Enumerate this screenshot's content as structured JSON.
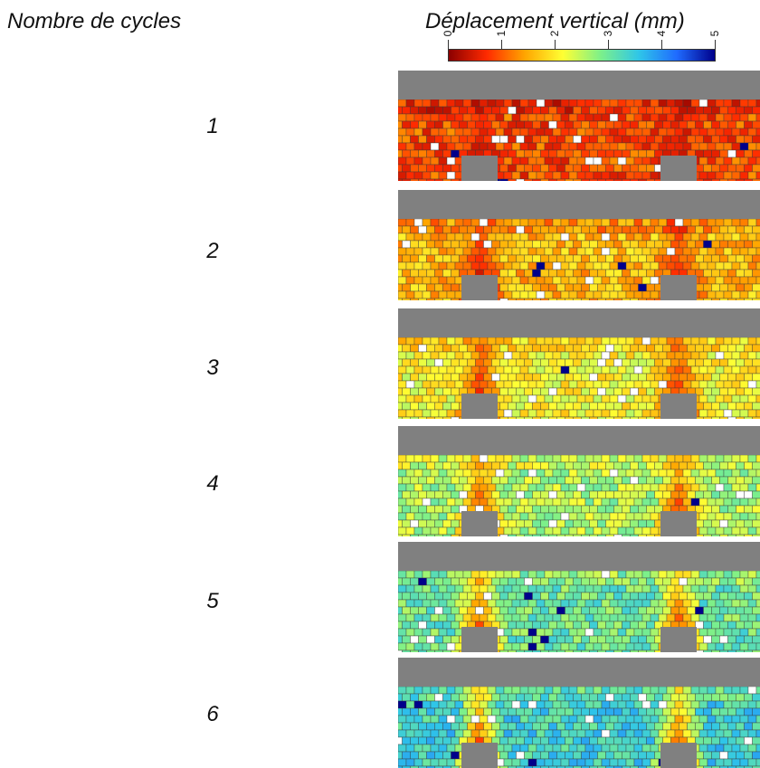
{
  "header": {
    "left_title": "Nombre de cycles",
    "right_title": "Déplacement vertical (mm)"
  },
  "colorbar": {
    "ticks": [
      "0",
      "1",
      "2",
      "3",
      "4",
      "5"
    ],
    "range": [
      0,
      5
    ],
    "colors": [
      "#8b0000",
      "#ff2a00",
      "#ffa500",
      "#ffff33",
      "#7cf08a",
      "#2fc6e8",
      "#1f6bff",
      "#00008b"
    ]
  },
  "panels": [
    {
      "cycle": "1",
      "mean_displacement_mm": 0.9
    },
    {
      "cycle": "2",
      "mean_displacement_mm": 1.6
    },
    {
      "cycle": "3",
      "mean_displacement_mm": 2.1
    },
    {
      "cycle": "4",
      "mean_displacement_mm": 2.6
    },
    {
      "cycle": "5",
      "mean_displacement_mm": 3.0
    },
    {
      "cycle": "6",
      "mean_displacement_mm": 3.4
    }
  ],
  "colors": {
    "structure_gray": "#808080",
    "grain_outline": "#3a3a3a",
    "text": "#111111"
  }
}
